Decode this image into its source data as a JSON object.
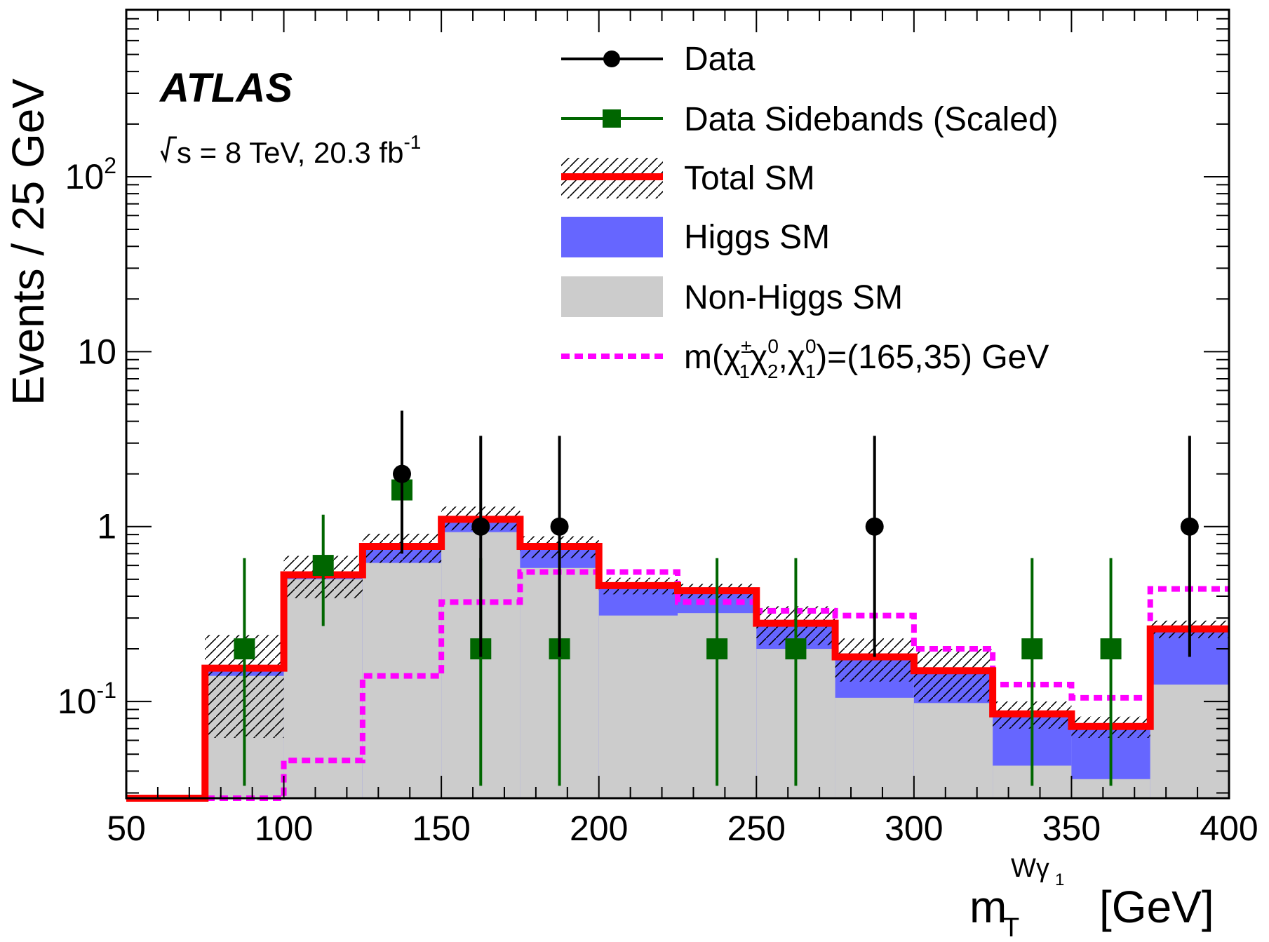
{
  "chart_data": {
    "type": "histogram",
    "experiment": "ATLAS",
    "energy_label": "s = 8 TeV, 20.3 fb",
    "energy_label_sup": "-1",
    "xlabel": "m",
    "xlabel_sub": "T",
    "xlabel_sup": "Wγ",
    "xlabel_sup_sub": "1",
    "xlabel_unit": "[GeV]",
    "ylabel": "Events / 25 GeV",
    "xlim": [
      50,
      400
    ],
    "ylim": [
      0.028,
      900
    ],
    "yscale": "log",
    "x_ticks": [
      50,
      100,
      150,
      200,
      250,
      300,
      350,
      400
    ],
    "x_tick_labels": [
      "50",
      "100",
      "150",
      "200",
      "250",
      "300",
      "350",
      "400"
    ],
    "y_ticks": [
      {
        "value": 0.1,
        "base": "10",
        "exp": "-1"
      },
      {
        "value": 1,
        "base": "1",
        "exp": ""
      },
      {
        "value": 10,
        "base": "10",
        "exp": ""
      },
      {
        "value": 100,
        "base": "10",
        "exp": "2"
      }
    ],
    "bin_edges": [
      50,
      75,
      100,
      125,
      150,
      175,
      200,
      225,
      250,
      275,
      300,
      325,
      350,
      375,
      400
    ],
    "series": [
      {
        "name": "Non-Higgs SM",
        "color": "#cccccc",
        "values": [
          0.028,
          0.14,
          0.5,
          0.62,
          0.93,
          0.58,
          0.31,
          0.32,
          0.2,
          0.105,
          0.098,
          0.043,
          0.036,
          0.125
        ]
      },
      {
        "name": "Total SM",
        "color": "#ff0000",
        "values": [
          0.028,
          0.155,
          0.53,
          0.77,
          1.1,
          0.77,
          0.46,
          0.43,
          0.28,
          0.18,
          0.15,
          0.085,
          0.072,
          0.26
        ]
      },
      {
        "name": "m(χ̃±1χ̃02,χ̃01)=(165,35) GeV",
        "color": "#ff00ff",
        "values": [
          0.028,
          0.028,
          0.046,
          0.14,
          0.37,
          0.55,
          0.55,
          0.37,
          0.33,
          0.31,
          0.2,
          0.125,
          0.105,
          0.44
        ]
      }
    ],
    "total_sm_uncertainty": [
      {
        "low": 0.028,
        "high": 0.028
      },
      {
        "low": 0.062,
        "high": 0.24
      },
      {
        "low": 0.39,
        "high": 0.68
      },
      {
        "low": 0.62,
        "high": 0.91
      },
      {
        "low": 0.95,
        "high": 1.3
      },
      {
        "low": 0.66,
        "high": 0.88
      },
      {
        "low": 0.41,
        "high": 0.51
      },
      {
        "low": 0.39,
        "high": 0.47
      },
      {
        "low": 0.21,
        "high": 0.35
      },
      {
        "low": 0.13,
        "high": 0.23
      },
      {
        "low": 0.1,
        "high": 0.2
      },
      {
        "low": 0.07,
        "high": 0.1
      },
      {
        "low": 0.062,
        "high": 0.082
      },
      {
        "low": 0.23,
        "high": 0.29
      }
    ],
    "data_points": [
      {
        "x": 137.5,
        "y": 2,
        "err_low": 0.7,
        "err_high": 4.6
      },
      {
        "x": 162.5,
        "y": 1,
        "err_low": 0.18,
        "err_high": 3.3
      },
      {
        "x": 187.5,
        "y": 1,
        "err_low": 0.18,
        "err_high": 3.3
      },
      {
        "x": 287.5,
        "y": 1,
        "err_low": 0.18,
        "err_high": 3.3
      },
      {
        "x": 387.5,
        "y": 1,
        "err_low": 0.18,
        "err_high": 3.3
      }
    ],
    "sideband_points": [
      {
        "x": 87.5,
        "y": 0.2,
        "err_low": 0.033,
        "err_high": 0.66
      },
      {
        "x": 112.5,
        "y": 0.6,
        "err_low": 0.27,
        "err_high": 1.17
      },
      {
        "x": 137.5,
        "y": 1.62,
        "err_low": 1.05,
        "err_high": 2.35
      },
      {
        "x": 162.5,
        "y": 0.2,
        "err_low": 0.033,
        "err_high": 0.66
      },
      {
        "x": 187.5,
        "y": 0.2,
        "err_low": 0.033,
        "err_high": 0.66
      },
      {
        "x": 237.5,
        "y": 0.2,
        "err_low": 0.033,
        "err_high": 0.66
      },
      {
        "x": 262.5,
        "y": 0.2,
        "err_low": 0.033,
        "err_high": 0.66
      },
      {
        "x": 337.5,
        "y": 0.2,
        "err_low": 0.033,
        "err_high": 0.66
      },
      {
        "x": 362.5,
        "y": 0.2,
        "err_low": 0.033,
        "err_high": 0.66
      }
    ],
    "legend": {
      "position": "top-right",
      "data": "Data",
      "sidebands": "Data Sidebands (Scaled)",
      "total_sm": "Total SM",
      "higgs_sm": "Higgs SM",
      "non_higgs_sm": "Non-Higgs SM",
      "signal": {
        "m": "m(",
        "chi1": "χ",
        "chi1_sup": "±",
        "chi1_sub": "1",
        "chi2": "χ",
        "chi2_sup": "0",
        "chi2_sub": "2",
        "comma": ",",
        "chi3": "χ",
        "chi3_sup": "0",
        "chi3_sub": "1",
        "rest": ")=(165,35) GeV"
      }
    },
    "colors": {
      "data": "#000000",
      "sideband": "#006600",
      "total_sm": "#ff0000",
      "higgs": "#6666ff",
      "non_higgs": "#cccccc",
      "signal": "#ff00ff"
    }
  }
}
